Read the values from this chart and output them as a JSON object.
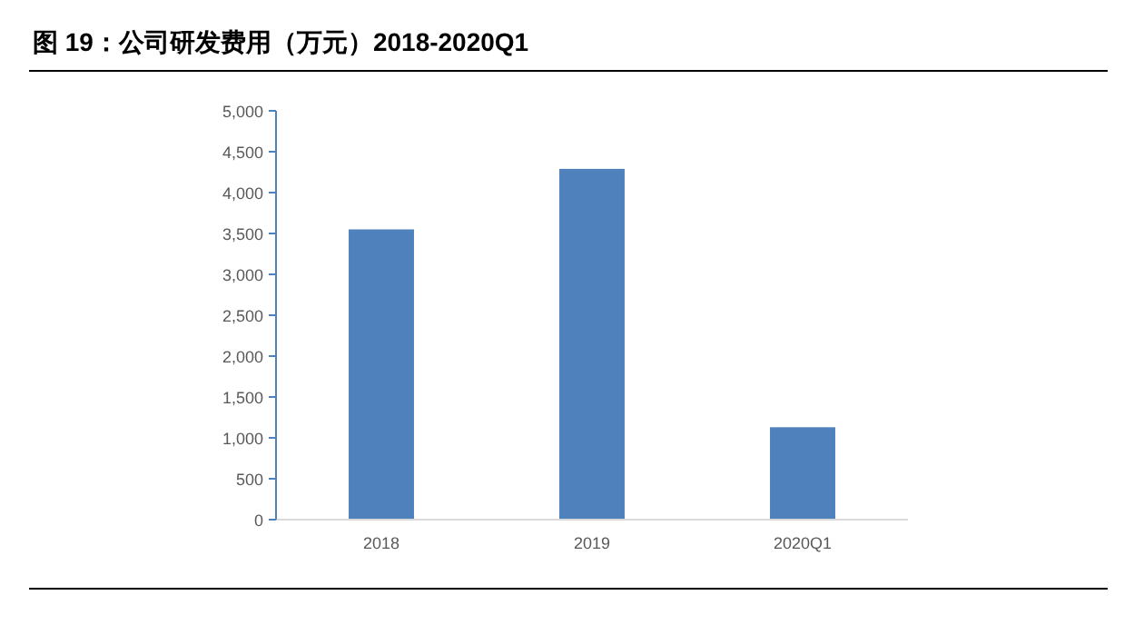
{
  "chart_data": {
    "type": "bar",
    "title": "图 19：公司研发费用（万元）2018-2020Q1",
    "categories": [
      "2018",
      "2019",
      "2020Q1"
    ],
    "values": [
      3550,
      4290,
      1130
    ],
    "color": "#4f81bd",
    "ylim": [
      0,
      5000
    ],
    "yticks": [
      {
        "value": 0,
        "label": "0"
      },
      {
        "value": 500,
        "label": "500"
      },
      {
        "value": 1000,
        "label": "1,000"
      },
      {
        "value": 1500,
        "label": "1,500"
      },
      {
        "value": 2000,
        "label": "2,000"
      },
      {
        "value": 2500,
        "label": "2,500"
      },
      {
        "value": 3000,
        "label": "3,000"
      },
      {
        "value": 3500,
        "label": "3,500"
      },
      {
        "value": 4000,
        "label": "4,000"
      },
      {
        "value": 4500,
        "label": "4,500"
      },
      {
        "value": 5000,
        "label": "5,000"
      }
    ],
    "grid": false
  }
}
